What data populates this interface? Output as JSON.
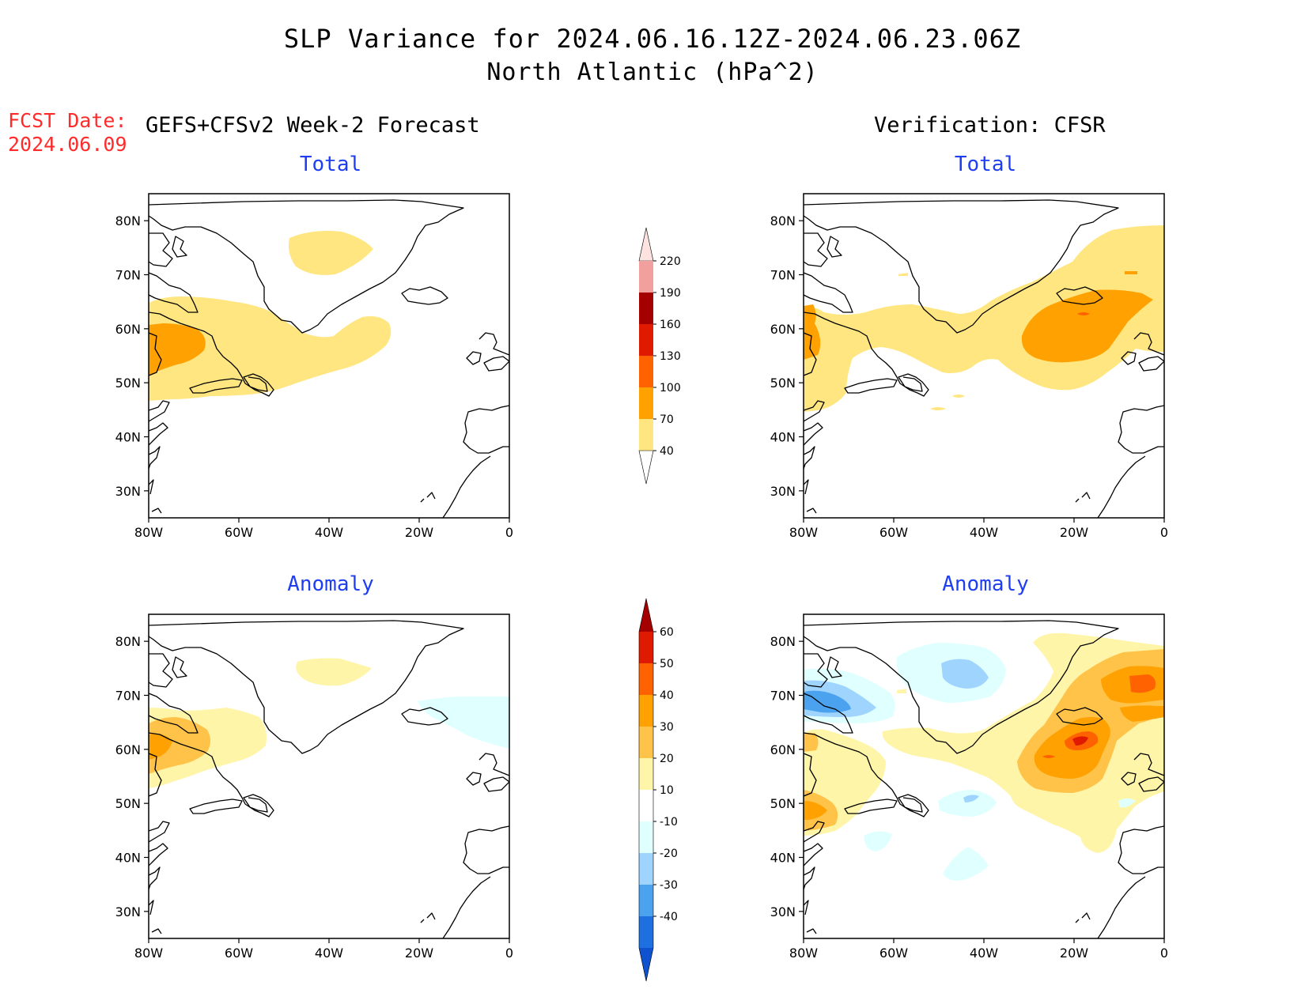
{
  "title": {
    "line1": "SLP Variance for 2024.06.16.12Z-2024.06.23.06Z",
    "line2": "North Atlantic (hPa^2)"
  },
  "forecast_date": {
    "label": "FCST Date:",
    "value": "2024.06.09"
  },
  "left_heading": "GEFS+CFSv2 Week-2 Forecast",
  "right_heading": "Verification: CFSR",
  "panels": {
    "top_left": {
      "title": "Total"
    },
    "top_right": {
      "title": "Total"
    },
    "bottom_left": {
      "title": "Anomaly"
    },
    "bottom_right": {
      "title": "Anomaly"
    }
  },
  "axes": {
    "x_ticks": [
      "80W",
      "60W",
      "40W",
      "20W",
      "0"
    ],
    "y_ticks": [
      "80N",
      "70N",
      "60N",
      "50N",
      "40N",
      "30N"
    ],
    "lon_range": [
      -80,
      0
    ],
    "lat_range": [
      25,
      85
    ]
  },
  "colorbars": {
    "total": {
      "labels": [
        "220",
        "190",
        "160",
        "130",
        "100",
        "70",
        "40"
      ],
      "colors": [
        "#fde3e0",
        "#f2a09d",
        "#a50000",
        "#e01a00",
        "#ff6200",
        "#ffa100",
        "#ffe680"
      ]
    },
    "anomaly": {
      "labels": [
        "60",
        "50",
        "40",
        "30",
        "20",
        "10",
        "-10",
        "-20",
        "-30",
        "-40"
      ],
      "colors": [
        "#a50000",
        "#e01a00",
        "#ff6200",
        "#ffa100",
        "#ffc34a",
        "#fff5a8",
        "#ffffff",
        "#e0ffff",
        "#9fd4ff",
        "#4ba3f0",
        "#1e6fe0",
        "#0f52d0"
      ]
    }
  },
  "colors": {
    "title_blue": "#1f3ef0",
    "fcst_red": "#ff2a2a",
    "total_40_70": "#ffe680",
    "total_70_100": "#ffa100",
    "total_100_130": "#ff6200",
    "anom_10_20": "#fff5a8",
    "anom_20_30": "#ffc34a",
    "anom_30_40": "#ffa100",
    "anom_40_50": "#ff6200",
    "anom_50_60": "#e01a00",
    "anom_m10_m20": "#e0ffff",
    "anom_m20_m30": "#9fd4ff",
    "anom_m30_m40": "#4ba3f0"
  }
}
